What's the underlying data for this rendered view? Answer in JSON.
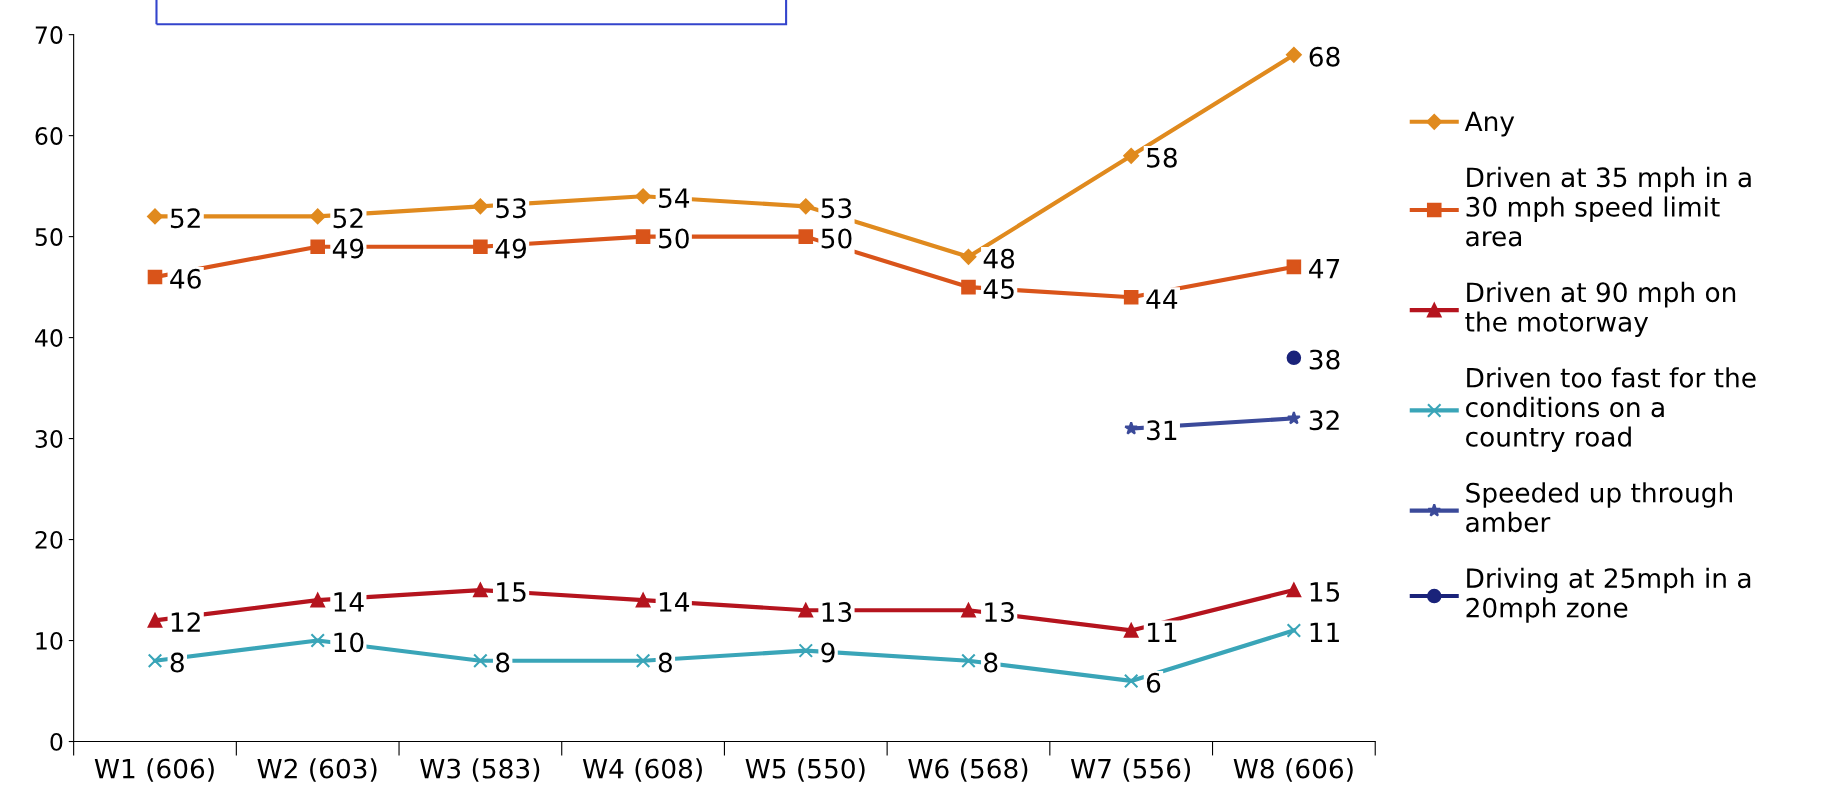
{
  "chart_data": {
    "type": "line",
    "categories": [
      "W1 (606)",
      "W2 (603)",
      "W3 (583)",
      "W4 (608)",
      "W5 (550)",
      "W6 (568)",
      "W7 (556)",
      "W8 (606)"
    ],
    "ylim": [
      0,
      70
    ],
    "yticks": [
      0,
      10,
      20,
      30,
      40,
      50,
      60,
      70
    ],
    "grid": false,
    "legend": "right",
    "data_labels": true,
    "series": [
      {
        "name": "Any",
        "color": "#e08a1e",
        "marker": "diamond",
        "values": [
          52,
          52,
          53,
          54,
          53,
          48,
          58,
          68
        ]
      },
      {
        "name": "Driven at 35 mph in a\n30 mph speed limit\narea",
        "color": "#d9541a",
        "marker": "square",
        "values": [
          46,
          49,
          49,
          50,
          50,
          45,
          44,
          47
        ]
      },
      {
        "name": "Driven at 90 mph on\nthe motorway",
        "color": "#b5141e",
        "marker": "triangle",
        "values": [
          12,
          14,
          15,
          14,
          13,
          13,
          11,
          15
        ]
      },
      {
        "name": "Driven too fast for the\nconditions on a\ncountry road",
        "color": "#3aa5b8",
        "marker": "cross",
        "values": [
          8,
          10,
          8,
          8,
          9,
          8,
          6,
          11
        ]
      },
      {
        "name": "Speeded up through\namber",
        "color": "#3b4a9a",
        "marker": "star",
        "values": [
          null,
          null,
          null,
          null,
          null,
          null,
          31,
          32
        ]
      },
      {
        "name": "Driving at 25mph in a\n20mph zone",
        "color": "#1a237a",
        "marker": "circle",
        "values": [
          null,
          null,
          null,
          null,
          null,
          null,
          null,
          38
        ]
      }
    ]
  }
}
